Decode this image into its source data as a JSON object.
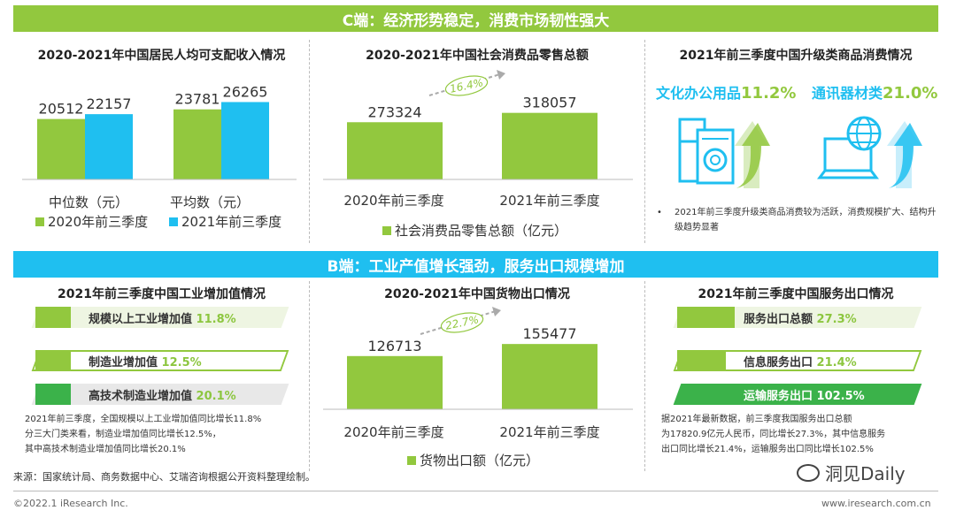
{
  "colors": {
    "green": "#92c83e",
    "blue": "#1fbff0",
    "lightgreen": "#d9ecbf",
    "grey": "#e5e5e5",
    "darkgreen": "#3bb24a"
  },
  "c_banner": "C端：经济形势稳定，消费市场韧性强大",
  "b_banner": "B端：工业产值增长强劲，服务出口规模增加",
  "income": {
    "title": "2020-2021年中国居民人均可支配收入情况",
    "legend": [
      "2020年前三季度",
      "2021年前三季度"
    ],
    "xlabels": [
      "中位数（元）",
      "平均数（元）"
    ]
  },
  "retail": {
    "title": "2020-2021年中国社会消费品零售总额",
    "growth": "16.4%",
    "xlabels": [
      "2020年前三季度",
      "2021年前三季度"
    ],
    "legend": "社会消费品零售总额（亿元）"
  },
  "upgrade": {
    "title": "2021年前三季度中国升级类商品消费情况",
    "item1": {
      "label": "文化办公用品",
      "value": "11.2%",
      "icon": "appliance-icon"
    },
    "item2": {
      "label": "通讯器材类",
      "value": "21.0%",
      "icon": "computer-globe-icon"
    },
    "note": "2021年前三季度升级类商品消费较为活跃，消费规模扩大、结构升级趋势显著"
  },
  "industry": {
    "title": "2021年前三季度中国工业增加值情况",
    "rows": [
      {
        "label": "规模以上工业增加值",
        "value": "11.8%"
      },
      {
        "label": "制造业增加值",
        "value": "12.5%"
      },
      {
        "label": "高技术制造业增加值",
        "value": "20.1%"
      }
    ],
    "note": [
      "2021年前三季度，全国规模以上工业增加值同比增长11.8%",
      "分三大门类来看，制造业增加值同比增长12.5%，",
      "其中高技术制造业增加值同比增长20.1%"
    ]
  },
  "exports": {
    "title": "2020-2021年中国货物出口情况",
    "growth": "22.7%",
    "xlabels": [
      "2020年前三季度",
      "2021年前三季度"
    ],
    "legend": "货物出口额（亿元）"
  },
  "services": {
    "title": "2021年前三季度中国服务出口情况",
    "rows": [
      {
        "label": "服务出口总额",
        "value": "27.3%"
      },
      {
        "label": "信息服务出口",
        "value": "21.4%"
      },
      {
        "label": "运输服务出口",
        "value": "102.5%"
      }
    ],
    "note": [
      "据2021年最新数据，前三季度我国服务出口总额",
      "为17820.9亿元人民币，同比增长27.3%，其中信息服务",
      "出口同比增长21.4%，运输服务出口同比增长102.5%"
    ]
  },
  "footer": {
    "source": "来源：国家统计局、商务数据中心、艾瑞咨询根据公开资料整理绘制。",
    "copyright": "©2022.1 iResearch Inc.",
    "url": "www.iresearch.com.cn",
    "watermark": "洞见Daily"
  },
  "chart_data": [
    {
      "type": "bar",
      "title": "2020-2021年中国居民人均可支配收入情况",
      "categories": [
        "中位数（元）",
        "平均数（元）"
      ],
      "series": [
        {
          "name": "2020年前三季度",
          "values": [
            20512,
            23781
          ],
          "color": "#92c83e"
        },
        {
          "name": "2021年前三季度",
          "values": [
            22157,
            26265
          ],
          "color": "#1fbff0"
        }
      ]
    },
    {
      "type": "bar",
      "title": "2020-2021年中国社会消费品零售总额",
      "categories": [
        "2020年前三季度",
        "2021年前三季度"
      ],
      "series": [
        {
          "name": "社会消费品零售总额（亿元）",
          "values": [
            273324,
            318057
          ],
          "color": "#92c83e"
        }
      ],
      "annotation": "16.4%"
    },
    {
      "type": "bar",
      "title": "2020-2021年中国货物出口情况",
      "categories": [
        "2020年前三季度",
        "2021年前三季度"
      ],
      "series": [
        {
          "name": "货物出口额（亿元）",
          "values": [
            126713,
            155477
          ],
          "color": "#92c83e"
        }
      ],
      "annotation": "22.7%"
    }
  ]
}
